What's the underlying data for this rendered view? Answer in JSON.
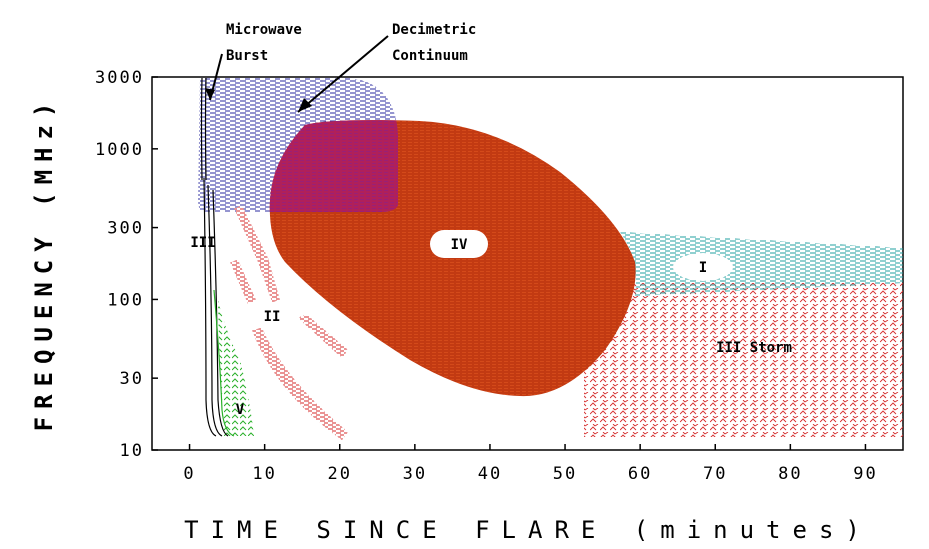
{
  "figure": {
    "ylabel": "FREQUENCY (MHz)",
    "xlabel": "TIME SINCE FLARE (minutes)",
    "x_ticks": [
      "0",
      "10",
      "20",
      "30",
      "40",
      "50",
      "60",
      "70",
      "80",
      "90"
    ],
    "y_ticks": [
      "10",
      "30",
      "100",
      "300",
      "1000",
      "3000"
    ]
  },
  "annotations": {
    "microwave_burst": [
      "Microwave",
      "Burst"
    ],
    "decimetric_continuum": [
      "Decimetric",
      "Continuum"
    ]
  },
  "regions": {
    "type_iii": "III",
    "type_ii": "II",
    "type_iv": "IV",
    "type_v": "V",
    "type_i": "I",
    "type_iii_storm": "III Storm"
  },
  "colors": {
    "blue_hatch": "#2b2ba0",
    "red_fill": "#c23a12",
    "red_hatch": "#d42a2a",
    "teal_hatch": "#22a0a0",
    "green_hatch": "#2ab02a",
    "overlap_magenta": "#b0205a"
  },
  "chart_data": {
    "type": "diagram",
    "x_range_minutes": [
      -5,
      95
    ],
    "y_range_mhz": [
      10,
      3000
    ],
    "y_scale": "log"
  }
}
